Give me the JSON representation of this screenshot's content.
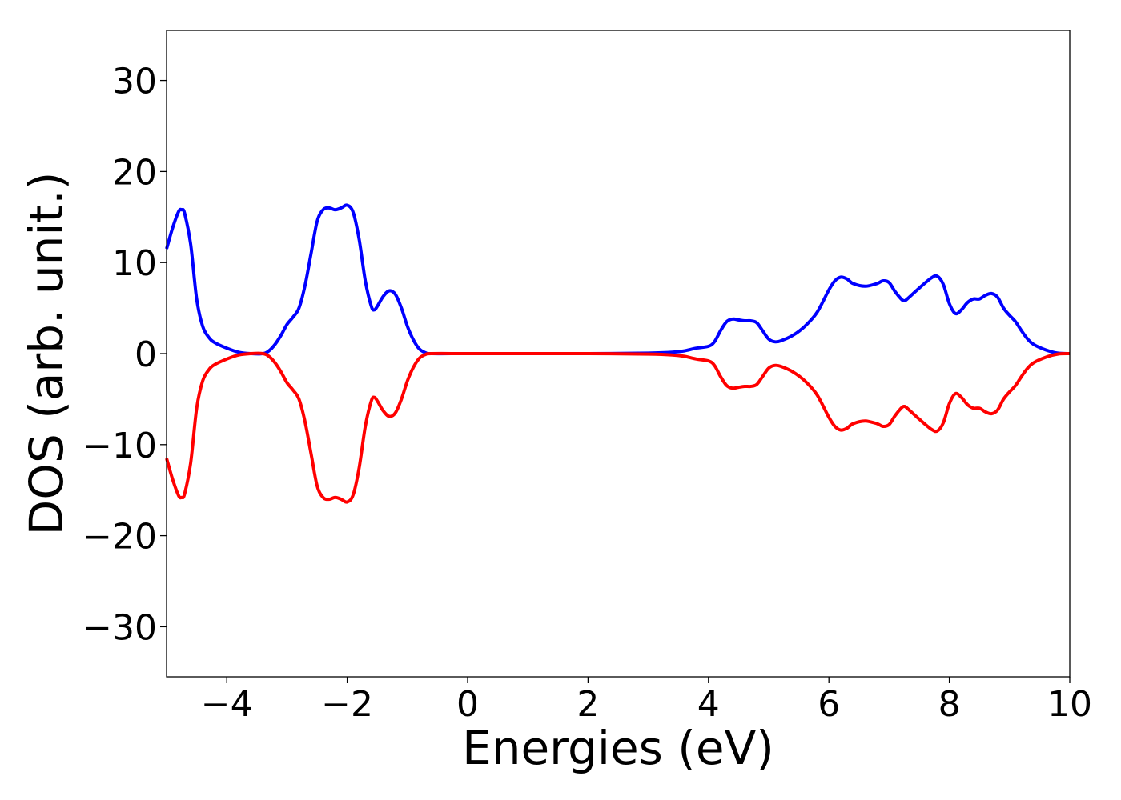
{
  "chart_data": {
    "type": "line",
    "title": "",
    "xlabel": "Energies (eV)",
    "ylabel": "DOS (arb. unit.)",
    "xlim": [
      -5,
      10
    ],
    "ylim": [
      -35.5,
      35.5
    ],
    "x_ticks": [
      -4,
      -2,
      0,
      2,
      4,
      6,
      8,
      10
    ],
    "x_tick_labels": [
      "−4",
      "−2",
      "0",
      "2",
      "4",
      "6",
      "8",
      "10"
    ],
    "y_ticks": [
      30,
      20,
      10,
      0,
      -10,
      -20,
      -30
    ],
    "y_tick_labels": [
      "30",
      "20",
      "10",
      "0",
      "−10",
      "−20",
      "−30"
    ],
    "grid": false,
    "legend": "none",
    "series": [
      {
        "color": "#0000ff",
        "points": [
          [
            -5.0,
            11.5
          ],
          [
            -4.9,
            13.8
          ],
          [
            -4.8,
            15.6
          ],
          [
            -4.75,
            15.8
          ],
          [
            -4.7,
            15.4
          ],
          [
            -4.6,
            12.0
          ],
          [
            -4.5,
            6.0
          ],
          [
            -4.4,
            3.0
          ],
          [
            -4.3,
            1.8
          ],
          [
            -4.2,
            1.2
          ],
          [
            -4.0,
            0.6
          ],
          [
            -3.8,
            0.15
          ],
          [
            -3.6,
            0.0
          ],
          [
            -3.4,
            0.0
          ],
          [
            -3.3,
            0.3
          ],
          [
            -3.2,
            1.0
          ],
          [
            -3.1,
            2.0
          ],
          [
            -3.0,
            3.2
          ],
          [
            -2.9,
            4.0
          ],
          [
            -2.8,
            5.0
          ],
          [
            -2.7,
            7.5
          ],
          [
            -2.6,
            11.0
          ],
          [
            -2.5,
            14.5
          ],
          [
            -2.4,
            15.8
          ],
          [
            -2.3,
            16.0
          ],
          [
            -2.2,
            15.8
          ],
          [
            -2.1,
            16.0
          ],
          [
            -2.0,
            16.3
          ],
          [
            -1.9,
            15.5
          ],
          [
            -1.8,
            12.5
          ],
          [
            -1.7,
            8.0
          ],
          [
            -1.6,
            5.2
          ],
          [
            -1.55,
            4.8
          ],
          [
            -1.5,
            5.2
          ],
          [
            -1.4,
            6.3
          ],
          [
            -1.3,
            6.9
          ],
          [
            -1.2,
            6.5
          ],
          [
            -1.1,
            5.0
          ],
          [
            -1.0,
            3.0
          ],
          [
            -0.9,
            1.5
          ],
          [
            -0.8,
            0.5
          ],
          [
            -0.7,
            0.1
          ],
          [
            -0.6,
            0.0
          ],
          [
            0.0,
            0.0
          ],
          [
            1.0,
            0.0
          ],
          [
            2.0,
            0.0
          ],
          [
            3.0,
            0.05
          ],
          [
            3.4,
            0.15
          ],
          [
            3.6,
            0.3
          ],
          [
            3.8,
            0.6
          ],
          [
            4.0,
            0.8
          ],
          [
            4.1,
            1.3
          ],
          [
            4.2,
            2.5
          ],
          [
            4.3,
            3.5
          ],
          [
            4.4,
            3.8
          ],
          [
            4.5,
            3.7
          ],
          [
            4.6,
            3.6
          ],
          [
            4.7,
            3.6
          ],
          [
            4.8,
            3.4
          ],
          [
            4.9,
            2.5
          ],
          [
            5.0,
            1.6
          ],
          [
            5.1,
            1.3
          ],
          [
            5.2,
            1.4
          ],
          [
            5.4,
            2.0
          ],
          [
            5.6,
            3.0
          ],
          [
            5.8,
            4.5
          ],
          [
            6.0,
            7.0
          ],
          [
            6.1,
            8.0
          ],
          [
            6.2,
            8.4
          ],
          [
            6.3,
            8.2
          ],
          [
            6.4,
            7.7
          ],
          [
            6.6,
            7.4
          ],
          [
            6.8,
            7.7
          ],
          [
            6.9,
            8.0
          ],
          [
            7.0,
            7.8
          ],
          [
            7.1,
            6.8
          ],
          [
            7.2,
            6.0
          ],
          [
            7.25,
            5.8
          ],
          [
            7.3,
            6.0
          ],
          [
            7.5,
            7.2
          ],
          [
            7.7,
            8.3
          ],
          [
            7.8,
            8.5
          ],
          [
            7.9,
            7.6
          ],
          [
            8.0,
            5.5
          ],
          [
            8.1,
            4.4
          ],
          [
            8.2,
            4.8
          ],
          [
            8.3,
            5.6
          ],
          [
            8.4,
            6.0
          ],
          [
            8.5,
            6.0
          ],
          [
            8.6,
            6.4
          ],
          [
            8.7,
            6.6
          ],
          [
            8.8,
            6.2
          ],
          [
            8.9,
            5.0
          ],
          [
            9.0,
            4.2
          ],
          [
            9.1,
            3.5
          ],
          [
            9.2,
            2.5
          ],
          [
            9.3,
            1.6
          ],
          [
            9.4,
            1.0
          ],
          [
            9.6,
            0.4
          ],
          [
            9.8,
            0.05
          ],
          [
            10.0,
            0.0
          ]
        ]
      },
      {
        "color": "#ff0000",
        "points": [
          [
            -5.0,
            -11.5
          ],
          [
            -4.9,
            -13.8
          ],
          [
            -4.8,
            -15.6
          ],
          [
            -4.75,
            -15.8
          ],
          [
            -4.7,
            -15.4
          ],
          [
            -4.6,
            -12.0
          ],
          [
            -4.5,
            -6.0
          ],
          [
            -4.4,
            -3.0
          ],
          [
            -4.3,
            -1.8
          ],
          [
            -4.2,
            -1.2
          ],
          [
            -4.0,
            -0.6
          ],
          [
            -3.8,
            -0.15
          ],
          [
            -3.6,
            0.0
          ],
          [
            -3.4,
            0.0
          ],
          [
            -3.3,
            -0.3
          ],
          [
            -3.2,
            -1.0
          ],
          [
            -3.1,
            -2.0
          ],
          [
            -3.0,
            -3.2
          ],
          [
            -2.9,
            -4.0
          ],
          [
            -2.8,
            -5.0
          ],
          [
            -2.7,
            -7.5
          ],
          [
            -2.6,
            -11.0
          ],
          [
            -2.5,
            -14.5
          ],
          [
            -2.4,
            -15.8
          ],
          [
            -2.3,
            -16.0
          ],
          [
            -2.2,
            -15.8
          ],
          [
            -2.1,
            -16.0
          ],
          [
            -2.0,
            -16.3
          ],
          [
            -1.9,
            -15.5
          ],
          [
            -1.8,
            -12.5
          ],
          [
            -1.7,
            -8.0
          ],
          [
            -1.6,
            -5.2
          ],
          [
            -1.55,
            -4.8
          ],
          [
            -1.5,
            -5.2
          ],
          [
            -1.4,
            -6.3
          ],
          [
            -1.3,
            -6.9
          ],
          [
            -1.2,
            -6.5
          ],
          [
            -1.1,
            -5.0
          ],
          [
            -1.0,
            -3.0
          ],
          [
            -0.9,
            -1.5
          ],
          [
            -0.8,
            -0.5
          ],
          [
            -0.7,
            -0.1
          ],
          [
            -0.6,
            0.0
          ],
          [
            0.0,
            0.0
          ],
          [
            1.0,
            0.0
          ],
          [
            2.0,
            0.0
          ],
          [
            3.0,
            -0.05
          ],
          [
            3.4,
            -0.15
          ],
          [
            3.6,
            -0.3
          ],
          [
            3.8,
            -0.6
          ],
          [
            4.0,
            -0.8
          ],
          [
            4.1,
            -1.3
          ],
          [
            4.2,
            -2.5
          ],
          [
            4.3,
            -3.5
          ],
          [
            4.4,
            -3.8
          ],
          [
            4.5,
            -3.7
          ],
          [
            4.6,
            -3.6
          ],
          [
            4.7,
            -3.6
          ],
          [
            4.8,
            -3.4
          ],
          [
            4.9,
            -2.5
          ],
          [
            5.0,
            -1.6
          ],
          [
            5.1,
            -1.3
          ],
          [
            5.2,
            -1.4
          ],
          [
            5.4,
            -2.0
          ],
          [
            5.6,
            -3.0
          ],
          [
            5.8,
            -4.5
          ],
          [
            6.0,
            -7.0
          ],
          [
            6.1,
            -8.0
          ],
          [
            6.2,
            -8.4
          ],
          [
            6.3,
            -8.2
          ],
          [
            6.4,
            -7.7
          ],
          [
            6.6,
            -7.4
          ],
          [
            6.8,
            -7.7
          ],
          [
            6.9,
            -8.0
          ],
          [
            7.0,
            -7.8
          ],
          [
            7.1,
            -6.8
          ],
          [
            7.2,
            -6.0
          ],
          [
            7.25,
            -5.8
          ],
          [
            7.3,
            -6.0
          ],
          [
            7.5,
            -7.2
          ],
          [
            7.7,
            -8.3
          ],
          [
            7.8,
            -8.5
          ],
          [
            7.9,
            -7.6
          ],
          [
            8.0,
            -5.5
          ],
          [
            8.1,
            -4.4
          ],
          [
            8.2,
            -4.8
          ],
          [
            8.3,
            -5.6
          ],
          [
            8.4,
            -6.0
          ],
          [
            8.5,
            -6.0
          ],
          [
            8.6,
            -6.4
          ],
          [
            8.7,
            -6.6
          ],
          [
            8.8,
            -6.2
          ],
          [
            8.9,
            -5.0
          ],
          [
            9.0,
            -4.2
          ],
          [
            9.1,
            -3.5
          ],
          [
            9.2,
            -2.5
          ],
          [
            9.3,
            -1.6
          ],
          [
            9.4,
            -1.0
          ],
          [
            9.6,
            -0.4
          ],
          [
            9.8,
            -0.05
          ],
          [
            10.0,
            0.0
          ]
        ]
      }
    ]
  }
}
